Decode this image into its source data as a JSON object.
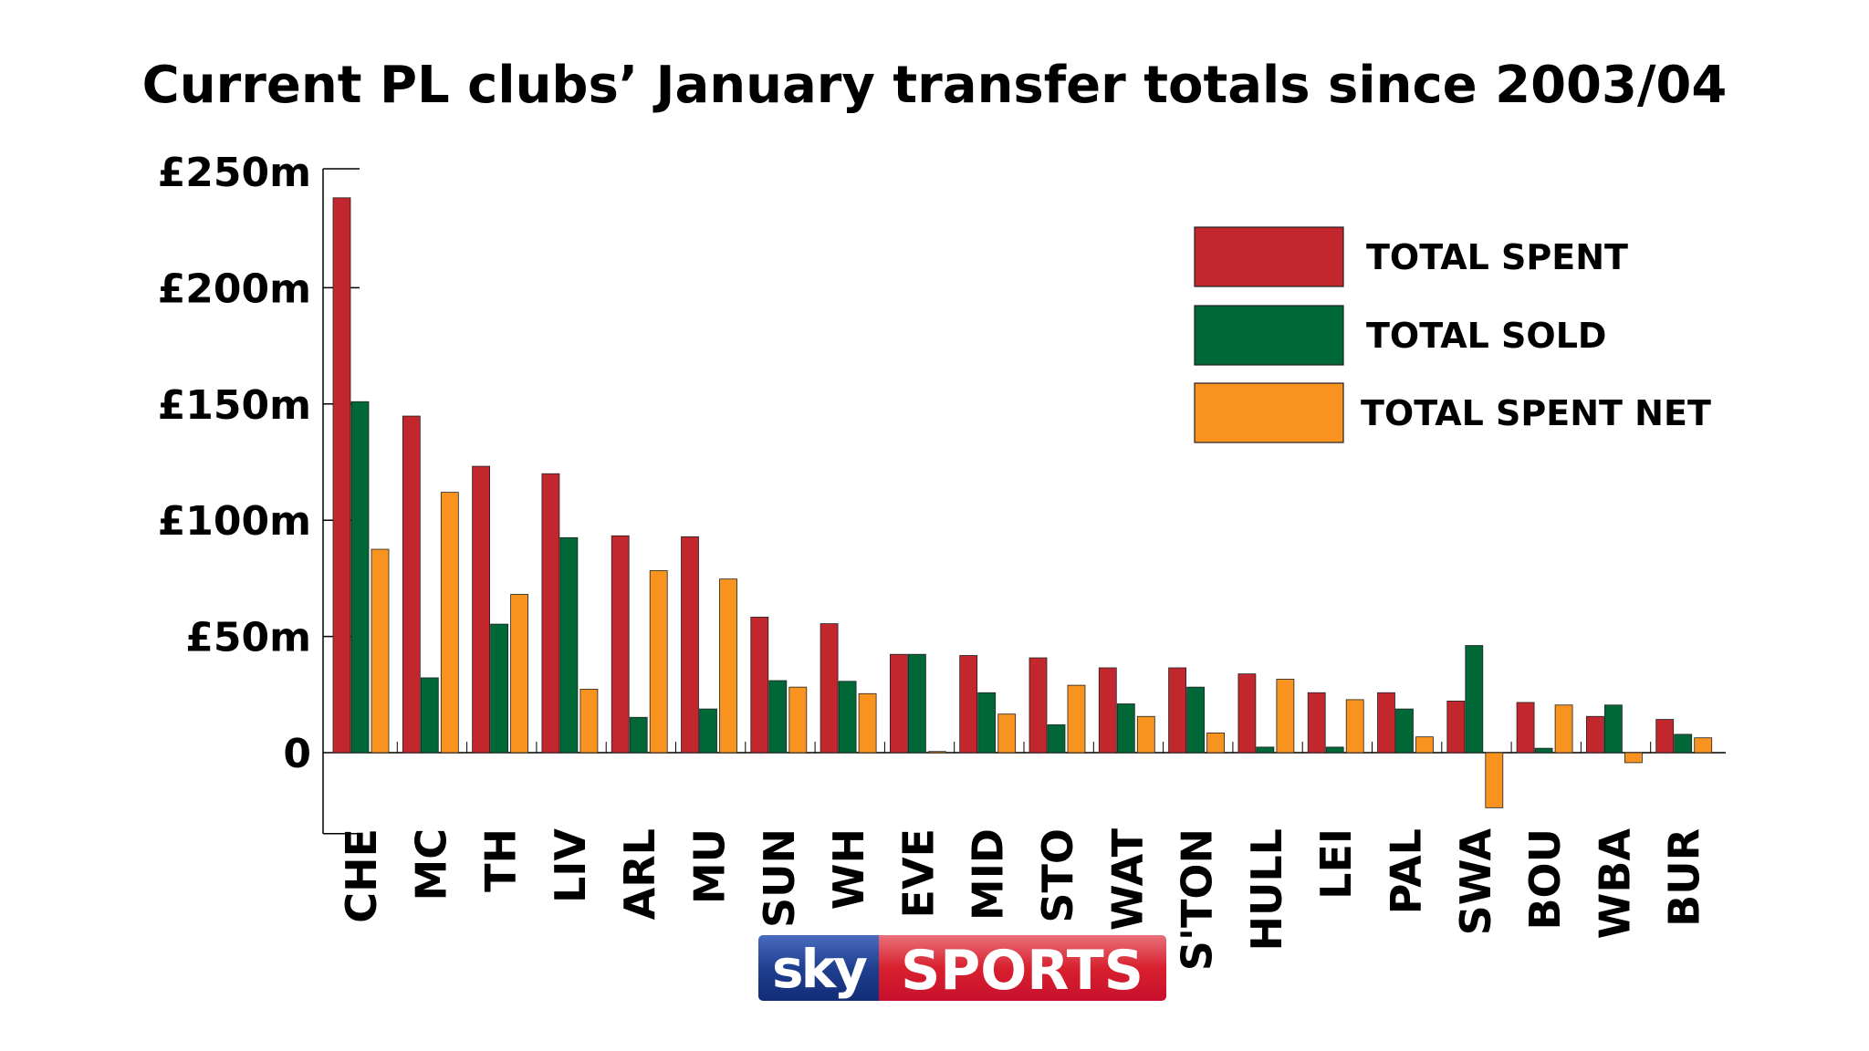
{
  "chart_data": {
    "type": "bar",
    "title": "Current PL clubs’ January transfer totals since 2003/04",
    "xlabel": "",
    "ylabel": "",
    "ylim": [
      -25,
      250
    ],
    "yticks": [
      0,
      50,
      100,
      150,
      200,
      250
    ],
    "ytick_labels": [
      "0",
      "£50m",
      "£100m",
      "£150m",
      "£200m",
      "£250m"
    ],
    "grid": false,
    "legend_position": "top-right",
    "categories": [
      "CHE",
      "MC",
      "TH",
      "LIV",
      "ARL",
      "MU",
      "SUN",
      "WH",
      "EVE",
      "MID",
      "STO",
      "WAT",
      "S'TON",
      "HULL",
      "LEI",
      "PAL",
      "SWA",
      "BOU",
      "WBA",
      "BUR"
    ],
    "series": [
      {
        "name": "TOTAL SPENT",
        "color": "#c1272d",
        "values": [
          238.7,
          144.8,
          123.2,
          120.0,
          93.3,
          92.9,
          58.3,
          55.5,
          42.3,
          41.8,
          40.8,
          36.5,
          36.5,
          33.9,
          25.8,
          25.8,
          22.2,
          21.6,
          15.6,
          14.3
        ]
      },
      {
        "name": "TOTAL SOLD",
        "color": "#006837",
        "values": [
          151.0,
          32.2,
          55.3,
          92.5,
          15.2,
          18.8,
          31.0,
          30.7,
          42.3,
          25.8,
          12.0,
          21.0,
          28.2,
          2.4,
          2.4,
          18.8,
          46.1,
          1.9,
          20.5,
          7.9
        ]
      },
      {
        "name": "TOTAL SPENT NET",
        "color": "#f7931e",
        "values": [
          87.5,
          112.0,
          68.1,
          27.3,
          78.3,
          74.7,
          28.2,
          25.4,
          0.5,
          16.6,
          29.0,
          15.6,
          8.5,
          31.6,
          22.8,
          6.8,
          -23.7,
          20.5,
          -4.3,
          6.4
        ]
      }
    ]
  },
  "logo": {
    "part1": "sky",
    "part2": "SPORTS",
    "blue": "#1f3f8f",
    "red": "#d8202e"
  }
}
